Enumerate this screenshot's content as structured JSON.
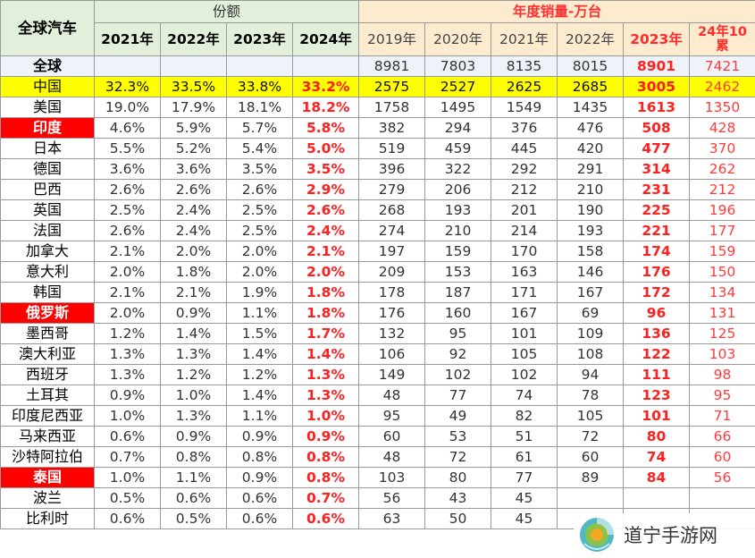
{
  "header": {
    "corner": "全球汽车",
    "share_title": "份额",
    "sales_title": "年度销量-万台",
    "share_years": [
      "2021年",
      "2022年",
      "2023年",
      "2024年"
    ],
    "sales_years": [
      "2019年",
      "2020年",
      "2021年",
      "2022年",
      "2023年"
    ],
    "ytd_label": "24年10累"
  },
  "rows": [
    {
      "name": "全球",
      "share": [
        "",
        "",
        "",
        ""
      ],
      "sales": [
        "8981",
        "7803",
        "8135",
        "8015",
        "8901",
        "7421"
      ]
    },
    {
      "name": "中国",
      "share": [
        "32.3%",
        "33.5%",
        "33.8%",
        "33.2%"
      ],
      "sales": [
        "2575",
        "2527",
        "2625",
        "2685",
        "3005",
        "2462"
      ]
    },
    {
      "name": "美国",
      "share": [
        "19.0%",
        "17.9%",
        "18.1%",
        "18.2%"
      ],
      "sales": [
        "1758",
        "1495",
        "1549",
        "1435",
        "1613",
        "1350"
      ]
    },
    {
      "name": "印度",
      "share": [
        "4.6%",
        "5.9%",
        "5.7%",
        "5.8%"
      ],
      "sales": [
        "382",
        "294",
        "376",
        "476",
        "508",
        "428"
      ]
    },
    {
      "name": "日本",
      "share": [
        "5.5%",
        "5.2%",
        "5.4%",
        "5.0%"
      ],
      "sales": [
        "519",
        "459",
        "445",
        "420",
        "477",
        "370"
      ]
    },
    {
      "name": "德国",
      "share": [
        "3.6%",
        "3.6%",
        "3.5%",
        "3.5%"
      ],
      "sales": [
        "396",
        "322",
        "292",
        "291",
        "314",
        "262"
      ]
    },
    {
      "name": "巴西",
      "share": [
        "2.6%",
        "2.6%",
        "2.6%",
        "2.9%"
      ],
      "sales": [
        "279",
        "206",
        "212",
        "210",
        "231",
        "212"
      ]
    },
    {
      "name": "英国",
      "share": [
        "2.5%",
        "2.4%",
        "2.5%",
        "2.6%"
      ],
      "sales": [
        "268",
        "193",
        "201",
        "190",
        "225",
        "196"
      ]
    },
    {
      "name": "法国",
      "share": [
        "2.6%",
        "2.4%",
        "2.5%",
        "2.4%"
      ],
      "sales": [
        "274",
        "210",
        "214",
        "193",
        "221",
        "177"
      ]
    },
    {
      "name": "加拿大",
      "share": [
        "2.1%",
        "2.0%",
        "2.0%",
        "2.1%"
      ],
      "sales": [
        "197",
        "159",
        "170",
        "158",
        "174",
        "159"
      ]
    },
    {
      "name": "意大利",
      "share": [
        "2.0%",
        "1.8%",
        "2.0%",
        "2.0%"
      ],
      "sales": [
        "209",
        "153",
        "163",
        "146",
        "176",
        "150"
      ]
    },
    {
      "name": "韩国",
      "share": [
        "2.1%",
        "2.1%",
        "1.9%",
        "1.8%"
      ],
      "sales": [
        "178",
        "187",
        "171",
        "167",
        "172",
        "134"
      ]
    },
    {
      "name": "俄罗斯",
      "share": [
        "2.0%",
        "0.9%",
        "1.1%",
        "1.8%"
      ],
      "sales": [
        "176",
        "160",
        "167",
        "69",
        "96",
        "131"
      ]
    },
    {
      "name": "墨西哥",
      "share": [
        "1.2%",
        "1.4%",
        "1.5%",
        "1.7%"
      ],
      "sales": [
        "132",
        "95",
        "101",
        "109",
        "136",
        "125"
      ]
    },
    {
      "name": "澳大利亚",
      "share": [
        "1.3%",
        "1.3%",
        "1.4%",
        "1.4%"
      ],
      "sales": [
        "106",
        "92",
        "105",
        "108",
        "122",
        "103"
      ]
    },
    {
      "name": "西班牙",
      "share": [
        "1.3%",
        "1.2%",
        "1.2%",
        "1.3%"
      ],
      "sales": [
        "149",
        "102",
        "102",
        "94",
        "111",
        "98"
      ]
    },
    {
      "name": "土耳其",
      "share": [
        "0.9%",
        "1.0%",
        "1.4%",
        "1.3%"
      ],
      "sales": [
        "48",
        "77",
        "74",
        "78",
        "123",
        "95"
      ]
    },
    {
      "name": "印度尼西亚",
      "share": [
        "1.0%",
        "1.3%",
        "1.1%",
        "1.0%"
      ],
      "sales": [
        "95",
        "49",
        "82",
        "105",
        "101",
        "71"
      ]
    },
    {
      "name": "马来西亚",
      "share": [
        "0.6%",
        "0.9%",
        "0.9%",
        "0.9%"
      ],
      "sales": [
        "60",
        "53",
        "51",
        "72",
        "80",
        "66"
      ]
    },
    {
      "name": "沙特阿拉伯",
      "share": [
        "0.7%",
        "0.8%",
        "0.8%",
        "0.8%"
      ],
      "sales": [
        "48",
        "72",
        "61",
        "60",
        "74",
        "60"
      ]
    },
    {
      "name": "泰国",
      "share": [
        "1.0%",
        "1.1%",
        "0.9%",
        "0.8%"
      ],
      "sales": [
        "103",
        "80",
        "77",
        "89",
        "84",
        "56"
      ]
    },
    {
      "name": "波兰",
      "share": [
        "0.5%",
        "0.6%",
        "0.6%",
        "0.7%"
      ],
      "sales": [
        "56",
        "43",
        "45",
        "",
        "",
        ""
      ]
    },
    {
      "name": "比利时",
      "share": [
        "0.6%",
        "0.5%",
        "0.6%",
        "0.6%"
      ],
      "sales": [
        "63",
        "50",
        "45",
        "",
        "",
        ""
      ]
    }
  ],
  "watermark": {
    "text": "道宁手游网",
    "icon": "swirl-logo-icon"
  },
  "colors": {
    "share_header_bg": "#e2efda",
    "sales_header_bg": "#fdebd0",
    "highlight_row": "#ffff00",
    "flag_red": "#ff0000",
    "emphasis_text": "#ff2020"
  }
}
